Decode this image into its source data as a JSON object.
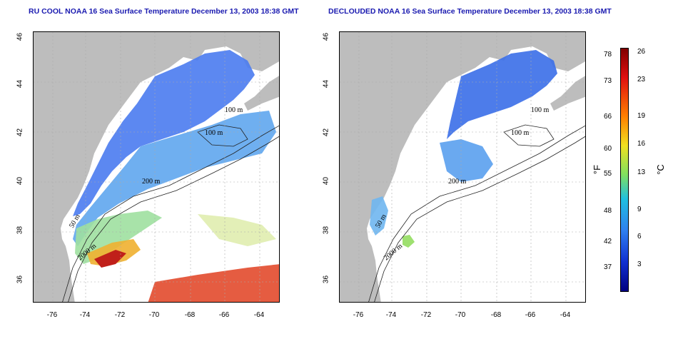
{
  "titles": {
    "left": "RU COOL NOAA 16 Sea Surface Temperature December 13, 2003 18:38 GMT",
    "right": "DECLOUDED NOAA 16 Sea Surface Temperature December 13, 2003 18:38 GMT"
  },
  "axes": {
    "lat_ticks": [
      "46",
      "44",
      "42",
      "40",
      "38",
      "36"
    ],
    "lon_ticks": [
      "-76",
      "-74",
      "-72",
      "-70",
      "-68",
      "-66",
      "-64"
    ]
  },
  "contours": {
    "label_100": "100 m",
    "label_200": "200 m",
    "label_50": "50 m",
    "label_2000": "2000 m"
  },
  "colorbar": {
    "f_ticks": [
      "78",
      "73",
      "66",
      "60",
      "55",
      "48",
      "42",
      "37"
    ],
    "c_ticks": [
      "26",
      "23",
      "19",
      "16",
      "13",
      "9",
      "6",
      "3"
    ],
    "unit_f": "°F",
    "unit_c": "°C"
  }
}
